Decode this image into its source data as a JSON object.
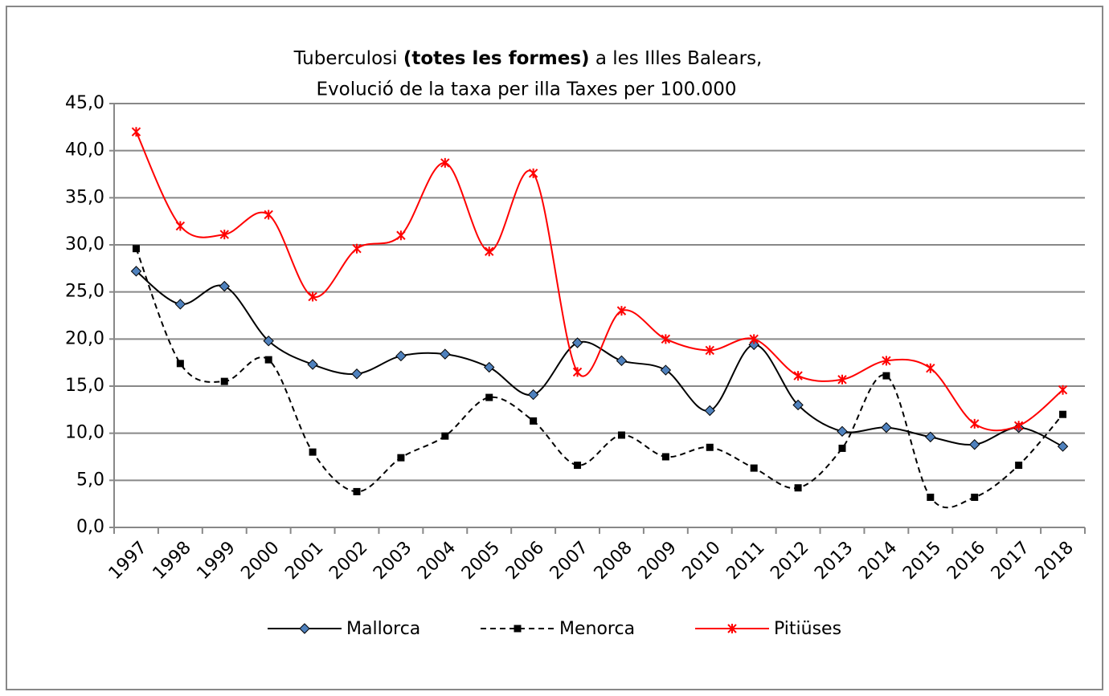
{
  "chart_data": {
    "type": "line",
    "title": {
      "line1": [
        "Tuberculosi",
        "(totes les formes)",
        "a les Illes Balears,"
      ],
      "line2": "Evolució de la taxa per illa  Taxes per 100.000"
    },
    "categories": [
      "1997",
      "1998",
      "1999",
      "2000",
      "2001",
      "2002",
      "2003",
      "2004",
      "2005",
      "2006",
      "2007",
      "2008",
      "2009",
      "2010",
      "2011",
      "2012",
      "2013",
      "2014",
      "2015",
      "2016",
      "2017",
      "2018"
    ],
    "series": [
      {
        "name": "Mallorca",
        "color": "#000000",
        "marker": "diamond",
        "marker_color": "#4f81bd",
        "dash": false,
        "values": [
          27.2,
          23.7,
          25.6,
          19.8,
          17.3,
          16.3,
          18.2,
          18.4,
          17.0,
          14.1,
          19.6,
          17.7,
          16.7,
          12.4,
          19.4,
          13.0,
          10.2,
          10.6,
          9.6,
          8.8,
          10.6,
          8.6
        ]
      },
      {
        "name": "Menorca",
        "color": "#000000",
        "marker": "square",
        "marker_color": "#000000",
        "dash": true,
        "values": [
          29.6,
          17.4,
          15.5,
          17.8,
          8.0,
          3.8,
          7.4,
          9.7,
          13.8,
          11.3,
          6.6,
          9.8,
          7.5,
          8.5,
          6.3,
          4.2,
          8.4,
          16.1,
          3.2,
          3.2,
          6.6,
          12.0
        ]
      },
      {
        "name": "Pitiüses",
        "color": "#ff0000",
        "marker": "star",
        "marker_color": "#ff0000",
        "dash": false,
        "values": [
          42.0,
          32.0,
          31.1,
          33.2,
          24.5,
          29.6,
          31.0,
          38.7,
          29.3,
          37.6,
          16.5,
          23.0,
          20.0,
          18.8,
          20.0,
          16.1,
          15.7,
          17.7,
          16.9,
          11.0,
          10.8,
          14.6
        ]
      }
    ],
    "ylim": [
      0,
      45
    ],
    "yticks": [
      {
        "value": 0,
        "label": "0,0"
      },
      {
        "value": 5,
        "label": "5,0"
      },
      {
        "value": 10,
        "label": "10,0"
      },
      {
        "value": 15,
        "label": "15,0"
      },
      {
        "value": 20,
        "label": "20,0"
      },
      {
        "value": 25,
        "label": "25,0"
      },
      {
        "value": 30,
        "label": "30,0"
      },
      {
        "value": 35,
        "label": "35,0"
      },
      {
        "value": 40,
        "label": "40,0"
      },
      {
        "value": 45,
        "label": "45,0"
      }
    ],
    "grid": true,
    "smooth": true,
    "legend": "bottom"
  }
}
